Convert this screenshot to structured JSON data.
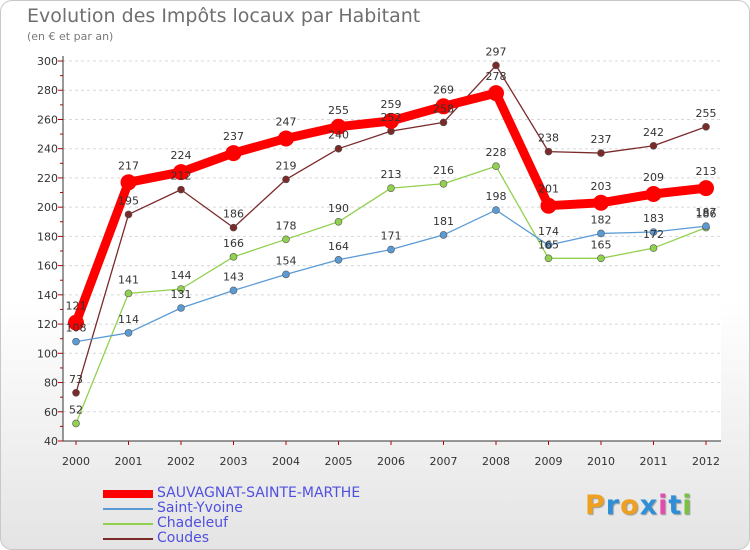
{
  "title": "Evolution des Impôts locaux par Habitant",
  "subtitle": "(en € et par an)",
  "logo": {
    "letters": [
      "P",
      "r",
      "o",
      "x",
      "i",
      "t",
      "i"
    ],
    "colors": [
      "#f0a020",
      "#2e8fd8",
      "#f0a020",
      "#2e8fd8",
      "#e64ab0",
      "#2e8fd8",
      "#7ac043"
    ]
  },
  "chart_data": {
    "type": "line",
    "categories": [
      "2000",
      "2001",
      "2002",
      "2003",
      "2004",
      "2005",
      "2006",
      "2007",
      "2008",
      "2009",
      "2010",
      "2011",
      "2012"
    ],
    "ylim": [
      40,
      300
    ],
    "yticks": [
      "40",
      "60",
      "80",
      "100",
      "120",
      "140",
      "160",
      "180",
      "200",
      "220",
      "240",
      "260",
      "280",
      "300"
    ],
    "grid": "horizontal",
    "legend": "bottom-left",
    "series": [
      {
        "name": "SAUVAGNAT-SAINTE-MARTHE",
        "color": "#ff0000",
        "values": [
          121,
          217,
          224,
          237,
          247,
          255,
          259,
          269,
          278,
          201,
          203,
          209,
          213
        ],
        "labels": [
          "121",
          "217",
          "224",
          "237",
          "247",
          "255",
          "259",
          "269",
          "278",
          "201",
          "203",
          "209",
          "213"
        ]
      },
      {
        "name": "Saint-Yvoine",
        "color": "#5b9bd5",
        "values": [
          108,
          114,
          131,
          143,
          154,
          164,
          171,
          181,
          198,
          174,
          182,
          183,
          187
        ],
        "labels": [
          "108",
          "114",
          "131",
          "143",
          "154",
          "164",
          "171",
          "181",
          "198",
          "174",
          "182",
          "183",
          "187"
        ]
      },
      {
        "name": "Chadeleuf",
        "color": "#92d050",
        "values": [
          52,
          141,
          144,
          166,
          178,
          190,
          213,
          216,
          228,
          165,
          165,
          172,
          186
        ],
        "labels": [
          "52",
          "141",
          "144",
          "166",
          "178",
          "190",
          "213",
          "216",
          "228",
          "165",
          "165",
          "172",
          "186"
        ]
      },
      {
        "name": "Coudes",
        "color": "#7b2a2a",
        "values": [
          73,
          195,
          212,
          186,
          219,
          240,
          252,
          258,
          297,
          238,
          237,
          242,
          255
        ],
        "labels": [
          "73",
          "195",
          "212",
          "186",
          "219",
          "240",
          "252",
          "258",
          "297",
          "238",
          "237",
          "242",
          "255"
        ]
      }
    ]
  }
}
